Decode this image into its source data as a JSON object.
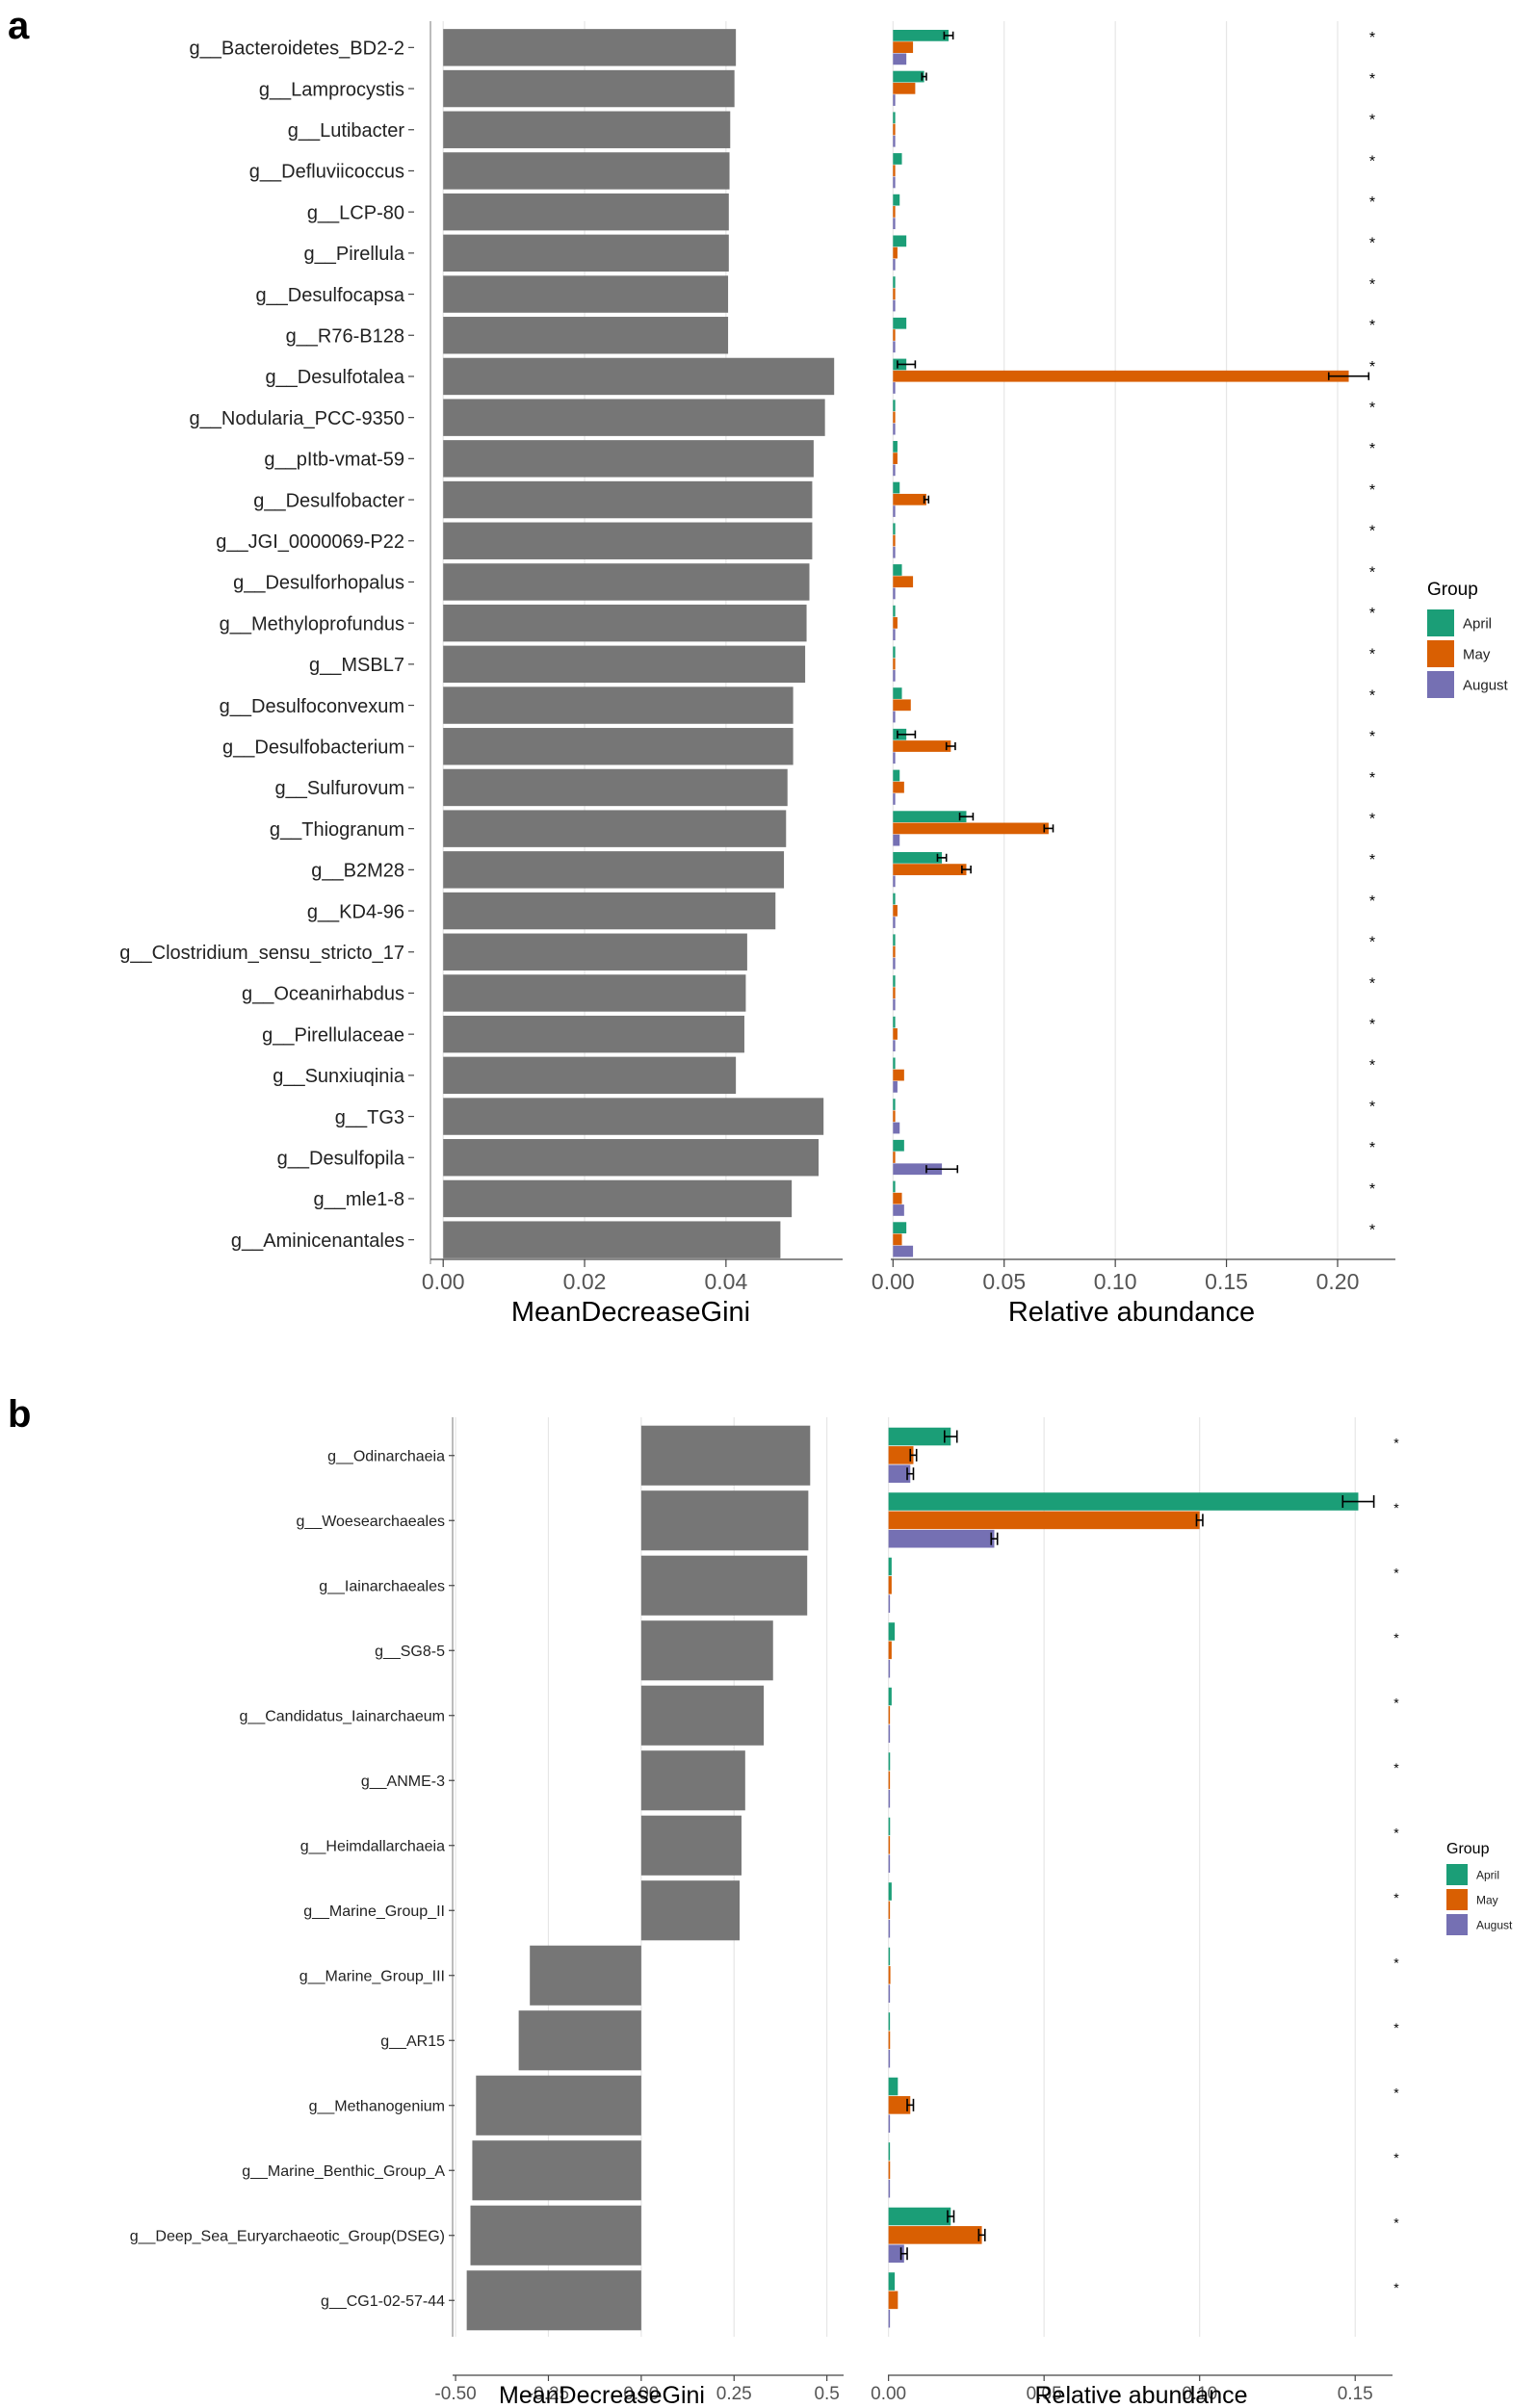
{
  "panels": [
    {
      "letter": "a",
      "genera": [
        "g__Bacteroidetes_BD2-2",
        "g__Lamprocystis",
        "g__Lutibacter",
        "g__Defluviicoccus",
        "g__LCP-80",
        "g__Pirellula",
        "g__Desulfocapsa",
        "g__R76-B128",
        "g__Desulfotalea",
        "g__Nodularia_PCC-9350",
        "g__pItb-vmat-59",
        "g__Desulfobacter",
        "g__JGI_0000069-P22",
        "g__Desulforhopalus",
        "g__Methyloprofundus",
        "g__MSBL7",
        "g__Desulfoconvexum",
        "g__Desulfobacterium",
        "g__Sulfurovum",
        "g__Thiogranum",
        "g__B2M28",
        "g__KD4-96",
        "g__Clostridium_sensu_stricto_17",
        "g__Oceanirhabdus",
        "g__Pirellulaceae",
        "g__Sunxiuqinia",
        "g__TG3",
        "g__Desulfopila",
        "g__mle1-8",
        "g__Aminicenantales"
      ],
      "significance": [
        "*",
        "*",
        "*",
        "*",
        "*",
        "*",
        "*",
        "*",
        "*",
        "*",
        "*",
        "*",
        "*",
        "*",
        "*",
        "*",
        "*",
        "*",
        "*",
        "*",
        "*",
        "*",
        "*",
        "*",
        "*",
        "*",
        "*",
        "*",
        "*",
        "*"
      ],
      "gini": {
        "xlabel": "MeanDecreaseGini",
        "range": [
          -0.0018,
          0.0565
        ],
        "ticks": [
          0,
          0.02,
          0.04
        ],
        "tick_labels": [
          "0.00",
          "0.02",
          "0.04"
        ],
        "values": [
          0.0414,
          0.0412,
          0.0406,
          0.0405,
          0.0404,
          0.0404,
          0.0403,
          0.0403,
          0.0553,
          0.054,
          0.0524,
          0.0522,
          0.0522,
          0.0518,
          0.0514,
          0.0512,
          0.0495,
          0.0495,
          0.0487,
          0.0485,
          0.0482,
          0.047,
          0.043,
          0.0428,
          0.0426,
          0.0414,
          0.0538,
          0.0531,
          0.0493,
          0.0477
        ]
      },
      "abundance": {
        "xlabel": "Relative abundance",
        "range": [
          -0.001,
          0.226
        ],
        "ticks": [
          0,
          0.05,
          0.1,
          0.15,
          0.2
        ],
        "tick_labels": [
          "0.00",
          "0.05",
          "0.10",
          "0.15",
          "0.20"
        ],
        "series": [
          {
            "name": "April",
            "color": "#1b9e77",
            "values": [
              0.025,
              0.014,
              0.001,
              0.004,
              0.003,
              0.006,
              0.001,
              0.006,
              0.006,
              0.001,
              0.002,
              0.003,
              0.001,
              0.004,
              0.001,
              0.001,
              0.004,
              0.006,
              0.003,
              0.033,
              0.022,
              0.001,
              0.001,
              0.001,
              0.001,
              0.001,
              0.001,
              0.005,
              0.001,
              0.006
            ],
            "errors": [
              0.002,
              0.001,
              0,
              0,
              0,
              0,
              0,
              0,
              0.004,
              0,
              0,
              0,
              0,
              0,
              0,
              0,
              0,
              0.004,
              0,
              0.003,
              0.002,
              0,
              0,
              0,
              0,
              0,
              0,
              0,
              0,
              0
            ]
          },
          {
            "name": "May",
            "color": "#d95f02",
            "values": [
              0.009,
              0.01,
              0.001,
              0.001,
              0.001,
              0.002,
              0.001,
              0.001,
              0.205,
              0.001,
              0.002,
              0.015,
              0.001,
              0.009,
              0.002,
              0.001,
              0.008,
              0.026,
              0.005,
              0.07,
              0.033,
              0.002,
              0.001,
              0.001,
              0.002,
              0.005,
              0.001,
              0.001,
              0.004,
              0.004
            ],
            "errors": [
              0,
              0,
              0,
              0,
              0,
              0,
              0,
              0,
              0.009,
              0,
              0,
              0.001,
              0,
              0,
              0,
              0,
              0,
              0.002,
              0,
              0.002,
              0.002,
              0,
              0,
              0,
              0,
              0,
              0,
              0,
              0,
              0
            ]
          },
          {
            "name": "August",
            "color": "#7570b3",
            "values": [
              0.006,
              0.001,
              0.001,
              0.001,
              0.001,
              0.001,
              0.001,
              0.001,
              0.001,
              0.001,
              0.001,
              0.001,
              0.001,
              0.001,
              0.001,
              0.001,
              0.001,
              0.001,
              0.001,
              0.003,
              0.001,
              0.001,
              0.001,
              0.001,
              0.001,
              0.002,
              0.003,
              0.022,
              0.005,
              0.009
            ],
            "errors": [
              0,
              0,
              0,
              0,
              0,
              0,
              0,
              0,
              0,
              0,
              0,
              0,
              0,
              0,
              0,
              0,
              0,
              0,
              0,
              0,
              0,
              0,
              0,
              0,
              0,
              0,
              0,
              0.007,
              0,
              0
            ]
          }
        ]
      },
      "legend": {
        "title": "Group",
        "items": [
          "April",
          "May",
          "August"
        ]
      }
    },
    {
      "letter": "b",
      "genera": [
        "g__Odinarchaeia",
        "g__Woesearchaeales",
        "g__Iainarchaeales",
        "g__SG8-5",
        "g__Candidatus_Iainarchaeum",
        "g__ANME-3",
        "g__Heimdallarchaeia",
        "g__Marine_Group_II",
        "g__Marine_Group_III",
        "g__AR15",
        "g__Methanogenium",
        "g__Marine_Benthic_Group_A",
        "g__Deep_Sea_Euryarchaeotic_Group(DSEG)",
        "g__CG1-02-57-44"
      ],
      "significance": [
        "*",
        "*",
        "*",
        "*",
        "*",
        "*",
        "*",
        "*",
        "*",
        "*",
        "*",
        "*",
        "*",
        "*"
      ],
      "gini": {
        "xlabel": "MeanDecreaseGini",
        "range": [
          -0.508,
          0.545
        ],
        "ticks": [
          -0.5,
          -0.25,
          0,
          0.25,
          0.5
        ],
        "tick_labels": [
          "-0.50",
          "-0.25",
          "0.00",
          "0.25",
          "0.5"
        ],
        "values": [
          0.455,
          0.45,
          0.447,
          0.355,
          0.33,
          0.28,
          0.27,
          0.265,
          -0.3,
          -0.33,
          -0.445,
          -0.455,
          -0.46,
          -0.47
        ]
      },
      "abundance": {
        "xlabel": "Relative abundance",
        "range": [
          -0.0002,
          0.162
        ],
        "ticks": [
          0,
          0.05,
          0.1,
          0.15
        ],
        "tick_labels": [
          "0.00",
          "0.05",
          "0.10",
          "0.15"
        ],
        "series": [
          {
            "name": "April",
            "color": "#1b9e77",
            "values": [
              0.02,
              0.151,
              0.001,
              0.002,
              0.001,
              0.0005,
              0.0005,
              0.001,
              0.0002,
              0.0002,
              0.003,
              0.0002,
              0.02,
              0.002
            ],
            "errors": [
              0.002,
              0.005,
              0,
              0,
              0,
              0,
              0,
              0,
              0,
              0,
              0,
              0,
              0.001,
              0
            ]
          },
          {
            "name": "May",
            "color": "#d95f02",
            "values": [
              0.008,
              0.1,
              0.001,
              0.001,
              0.0003,
              0.0003,
              0.0003,
              0.0003,
              0.0006,
              0.0005,
              0.007,
              0.0005,
              0.03,
              0.003
            ],
            "errors": [
              0.001,
              0.001,
              0,
              0,
              0,
              0,
              0,
              0,
              0,
              0,
              0.001,
              0,
              0.001,
              0
            ]
          },
          {
            "name": "August",
            "color": "#7570b3",
            "values": [
              0.007,
              0.034,
              0.0002,
              0.0002,
              0.0002,
              0.0002,
              0.0002,
              0.0002,
              0.0002,
              0.0002,
              0.0002,
              0.0002,
              0.005,
              0.0002
            ],
            "errors": [
              0.001,
              0.001,
              0,
              0,
              0,
              0,
              0,
              0,
              0,
              0,
              0,
              0,
              0.001,
              0
            ]
          }
        ]
      },
      "legend": {
        "title": "Group",
        "items": [
          "April",
          "May",
          "August"
        ]
      }
    }
  ]
}
